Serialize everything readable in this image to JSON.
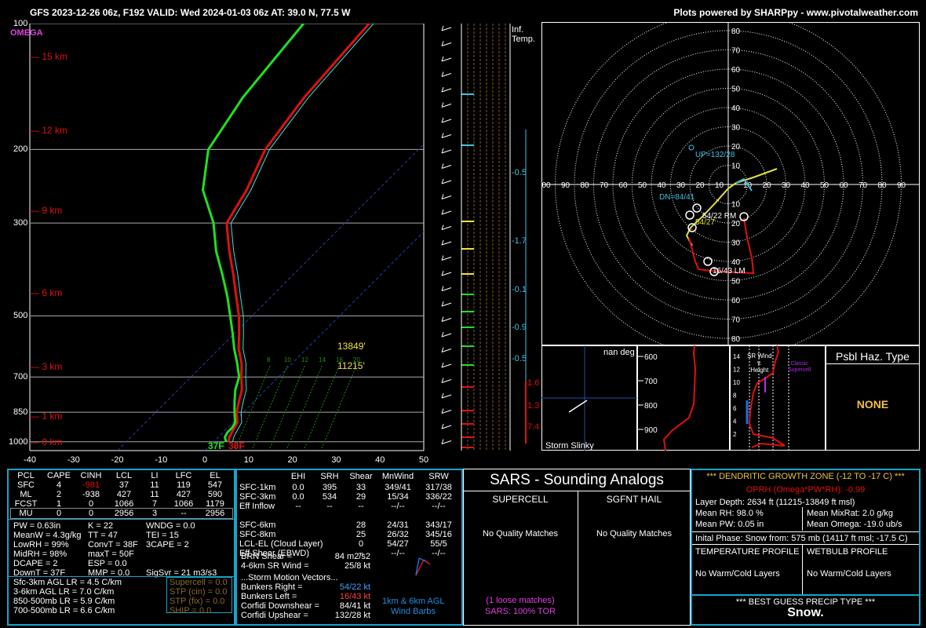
{
  "header": {
    "title": "GFS 2023-12-26 06z, F192  VALID: Wed 2024-01-03 06z  AT: 39.0 N, 77.5 W",
    "credit": "Plots powered by SHARPpy - www.pivotalweather.com"
  },
  "skewt": {
    "omega_label": "OMEGA",
    "pressure_ticks": [
      "100",
      "200",
      "300",
      "500",
      "700",
      "850",
      "1000"
    ],
    "height_labels": [
      "15 km",
      "12 km",
      "9 km",
      "6 km",
      "3 km",
      "1 km",
      "0 km"
    ],
    "temp_ticks": [
      "-40",
      "-30",
      "-20",
      "-10",
      "0",
      "10",
      "20",
      "30",
      "40",
      "50"
    ],
    "surface_td": "37F",
    "surface_t": "38F",
    "wbz_label": "13849'",
    "frz_label": "11215'",
    "mixing_ratio_labels": [
      "8",
      "10",
      "12",
      "14",
      "16",
      "20"
    ]
  },
  "inflow": {
    "inf_label": "Inf.",
    "temp_label": "Temp.",
    "values": [
      "-0.5",
      "-1.7",
      "-0.1",
      "-0.9",
      "-0.5"
    ],
    "red_values": [
      "1.6",
      "1.3",
      "7.4"
    ]
  },
  "hodograph": {
    "x_ticks": [
      "00",
      "90",
      "80",
      "70",
      "60",
      "50",
      "40",
      "30",
      "20",
      "10",
      "10",
      "20",
      "30",
      "40",
      "50",
      "60",
      "70",
      "80",
      "90"
    ],
    "y_ticks": [
      "80",
      "70",
      "60",
      "50",
      "40",
      "30",
      "20",
      "10",
      "10",
      "20",
      "30",
      "40",
      "50",
      "60",
      "70",
      "80"
    ],
    "up_label": "UP=132/28",
    "dn_label": "DN=84/41",
    "rm_label": "54/22 RM",
    "mean_label": "54/27",
    "lm_label": "16/43 LM"
  },
  "slinky": {
    "title": "nan deg",
    "label": "Storm Slinky"
  },
  "theta": {
    "ticks": [
      "600",
      "700",
      "800",
      "900"
    ]
  },
  "srwind": {
    "title": "SR Wind",
    "title2": "v.",
    "title3": "Height",
    "classic": "Classic",
    "supercell": "Supercell",
    "ticks": [
      "14",
      "12",
      "10",
      "8",
      "6",
      "4",
      "2"
    ]
  },
  "haz": {
    "title": "Psbl Haz. Type",
    "value": "NONE"
  },
  "parcels": {
    "headers": [
      "PCL",
      "CAPE",
      "CINH",
      "LCL",
      "LI",
      "LFC",
      "EL"
    ],
    "rows": [
      [
        "SFC",
        "4",
        "-981",
        "37",
        "11",
        "119",
        "547"
      ],
      [
        "ML",
        "2",
        "-938",
        "427",
        "11",
        "427",
        "590"
      ],
      [
        "FCST",
        "1",
        "0",
        "1066",
        "7",
        "1066",
        "1179"
      ],
      [
        "MU",
        "0",
        "0",
        "2956",
        "3",
        "--",
        "2956"
      ]
    ]
  },
  "indices": {
    "col1": [
      "PW = 0.63in",
      "MeanW = 4.3g/kg",
      "LowRH = 99%",
      "MidRH = 98%",
      "DCAPE = 2",
      "DownT = 37F"
    ],
    "col2": [
      "K = 22",
      "TT = 47",
      "ConvT = 38F",
      "maxT = 50F",
      "ESP = 0.0",
      "MMP = 0.0"
    ],
    "col3": [
      "WNDG = 0.0",
      "TEI = 15",
      "3CAPE = 2",
      "",
      "",
      "SigSvr = 21 m3/s3"
    ],
    "lapse": [
      "Sfc-3km AGL LR = 4.5 C/km",
      "3-6km AGL LR = 7.0 C/km",
      "850-500mb LR = 5.9 C/km",
      "700-500mb LR = 6.6 C/km"
    ],
    "severe": [
      "Supercell = 0.0",
      "STP (cin) = 0.0",
      "STP (fix) = 0.0",
      "SHIP = 0.0"
    ]
  },
  "kinematics": {
    "headers": [
      "",
      "EHI",
      "SRH",
      "Shear",
      "MnWind",
      "SRW"
    ],
    "rows": [
      [
        "SFC-1km",
        "0.0",
        "395",
        "33",
        "349/41",
        "317/38"
      ],
      [
        "SFC-3km",
        "0.0",
        "534",
        "29",
        "15/34",
        "336/22"
      ],
      [
        "Eff Inflow",
        "--",
        "--",
        "--",
        "--/--",
        "--/--"
      ],
      [
        "",
        "",
        "",
        "",
        "",
        ""
      ],
      [
        "SFC-6km",
        "",
        "",
        "28",
        "24/31",
        "343/17"
      ],
      [
        "SFC-8km",
        "",
        "",
        "25",
        "26/32",
        "345/16"
      ],
      [
        "LCL-EL (Cloud Layer)",
        "",
        "",
        "0",
        "54/27",
        "55/5"
      ],
      [
        "Eff Shear (EBWD)",
        "",
        "",
        "--",
        "--/--",
        "--/--"
      ]
    ],
    "brn_label": "BRN Shear =",
    "brn_value": "84 m2/s2",
    "srw_label": "4-6km SR Wind =",
    "srw_value": "25/8 kt",
    "motion_title": "...Storm Motion Vectors...",
    "motions": [
      {
        "label": "Bunkers Right =",
        "value": "54/22 kt"
      },
      {
        "label": "Bunkers Left =",
        "value": "16/43 kt"
      },
      {
        "label": "Corfidi Downshear =",
        "value": "84/41 kt"
      },
      {
        "label": "Corfidi Upshear =",
        "value": "132/28 kt"
      }
    ],
    "barb_caption1": "1km & 6km AGL",
    "barb_caption2": "Wind Barbs"
  },
  "sars": {
    "title": "SARS - Sounding Analogs",
    "supercell": "SUPERCELL",
    "hail": "SGFNT HAIL",
    "supercell_result": "No Quality Matches",
    "hail_result": "No Quality Matches",
    "loose": "(1 loose matches)",
    "tor": "SARS: 100% TOR"
  },
  "dgz": {
    "title": "*** DENDRITIC GROWTH ZONE (-12 TO -17 C) ***",
    "oprh": "OPRH (Omega*PW*RH): -0.99",
    "depth": "Layer Depth: 2634 ft (11215-13849 ft msl)",
    "rh": "Mean RH: 98.0 %",
    "mixrat": "Mean MixRat: 2.0 g/kg",
    "pw": "Mean PW: 0.05 in",
    "omega": "Mean Omega: -19.0 ub/s",
    "phase": "Inital Phase: Snow from: 575 mb (14117 ft msl; -17.5 C)",
    "temp_profile": "TEMPERATURE PROFILE",
    "wetbulb_profile": "WETBULB PROFILE",
    "temp_result": "No Warm/Cold Layers",
    "wetbulb_result": "No Warm/Cold Layers",
    "precip_title": "*** BEST GUESS PRECIP TYPE ***",
    "precip_value": "Snow."
  },
  "chart_data": [
    {
      "type": "line",
      "title": "",
      "xlabel": "",
      "ylabel": "",
      "note_units": "temperature C vs pressure mb (skew-T)",
      "series": [
        {
          "name": "",
          "pressure": [
            1000,
            975,
            950,
            925,
            900,
            850,
            800,
            750,
            700,
            650,
            600,
            550,
            500,
            450,
            400,
            350,
            300,
            250,
            200,
            150,
            100
          ],
          "values": [
            3.3,
            2.5,
            2.0,
            1.5,
            1.0,
            -1.5,
            -3.5,
            -5.5,
            -8.5,
            -11.5,
            -15.5,
            -19.0,
            -23.0,
            -28.0,
            -33.5,
            -40.0,
            -47.0,
            -50.0,
            -55.0,
            -58.0,
            -60.0
          ]
        },
        {
          "name": "",
          "pressure": [
            1000,
            975,
            950,
            925,
            900,
            850,
            800,
            750,
            700,
            650,
            600,
            550,
            500,
            450,
            400,
            350,
            300,
            250,
            200,
            150,
            100
          ],
          "values": [
            2.8,
            1.5,
            1.0,
            1.0,
            0.5,
            -2.0,
            -4.5,
            -7.0,
            -9.0,
            -12.5,
            -16.5,
            -20.5,
            -25.0,
            -30.0,
            -36.0,
            -43.0,
            -50.0,
            -60.0,
            -68.0,
            -72.0,
            -75.0
          ]
        }
      ],
      "xlim": [
        -40,
        50
      ],
      "ylim": [
        1050,
        100
      ]
    }
  ]
}
